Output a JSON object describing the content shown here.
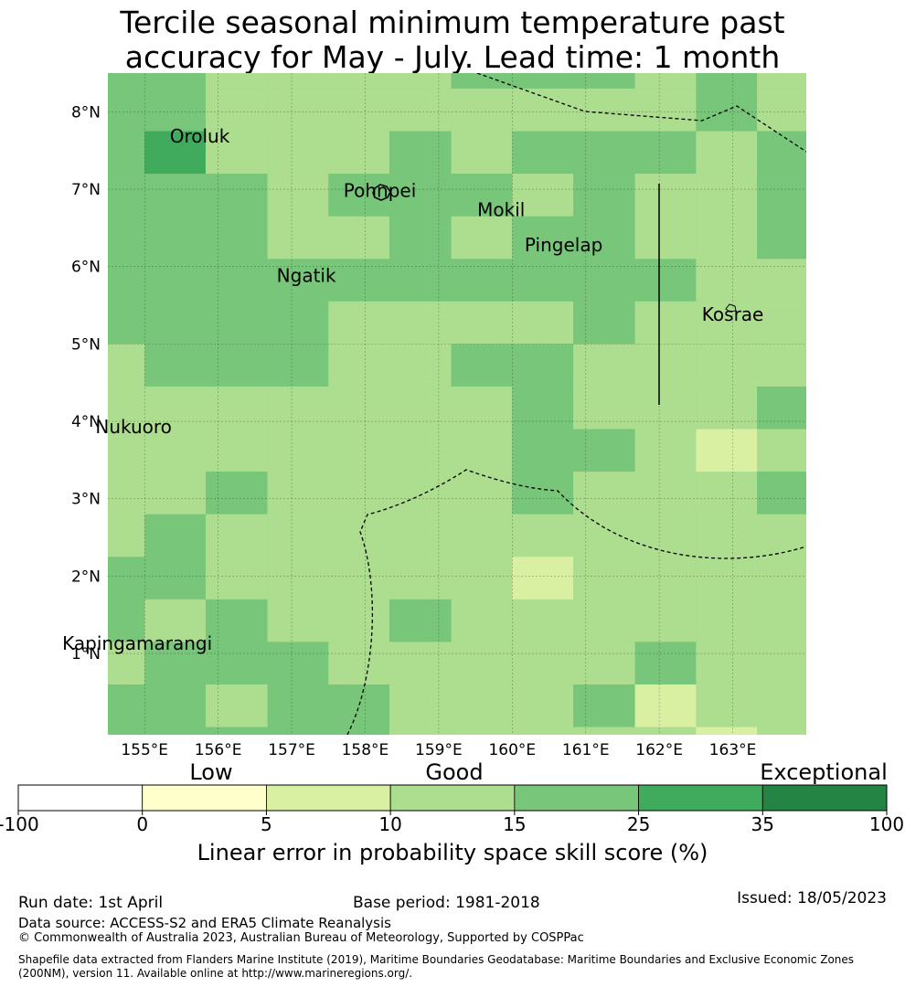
{
  "title_line1": "Tercile seasonal minimum temperature past",
  "title_line2": "accuracy for May - July. Lead time: 1 month",
  "map": {
    "lon_range": [
      154.5,
      164.0
    ],
    "lat_range": [
      -0.05,
      8.5
    ],
    "lon_ticks": [
      155,
      156,
      157,
      158,
      159,
      160,
      161,
      162,
      163
    ],
    "lon_tick_labels": [
      "155°E",
      "156°E",
      "157°E",
      "158°E",
      "159°E",
      "160°E",
      "161°E",
      "162°E",
      "163°E"
    ],
    "lat_ticks": [
      8,
      7,
      6,
      5,
      4,
      3,
      2,
      1
    ],
    "lat_tick_labels": [
      "8°N",
      "7°N",
      "6°N",
      "5°N",
      "4°N",
      "3°N",
      "2°N",
      "1°N"
    ],
    "places": [
      {
        "name": "Oroluk",
        "lon": 155.75,
        "lat": 7.6
      },
      {
        "name": "Pohnpei",
        "lon": 158.2,
        "lat": 6.9
      },
      {
        "name": "Mokil",
        "lon": 159.85,
        "lat": 6.65
      },
      {
        "name": "Pingelap",
        "lon": 160.7,
        "lat": 6.2
      },
      {
        "name": "Ngatik",
        "lon": 157.2,
        "lat": 5.8
      },
      {
        "name": "Kosrae",
        "lon": 163.0,
        "lat": 5.3
      },
      {
        "name": "Nukuoro",
        "lon": 154.85,
        "lat": 3.85
      },
      {
        "name": "Kapingamarangi",
        "lon": 154.9,
        "lat": 1.05
      }
    ]
  },
  "legend": {
    "categories": [
      "Low",
      "Good",
      "Exceptional"
    ],
    "boundaries": [
      "-100",
      "0",
      "5",
      "10",
      "15",
      "25",
      "35",
      "100"
    ],
    "colors": [
      "#ffffff",
      "#ffffcc",
      "#d9f0a3",
      "#addd8e",
      "#78c679",
      "#41ab5d",
      "#238443"
    ],
    "label": "Linear error in probability space skill score (%)"
  },
  "footer": {
    "run_date": "Run date: 1st April",
    "base_period": "Base period: 1981-2018",
    "issued": "Issued: 18/05/2023",
    "data_source": "Data source: ACCESS-S2 and ERA5 Climate Reanalysis",
    "copyright": "© Commonwealth of Australia 2023, Australian Bureau of Meteorology, Supported by COSPPac",
    "shapefile_line1": "Shapefile data extracted from Flanders Marine Institute (2019), Maritime Boundaries Geodatabase: Maritime Boundaries and Exclusive Economic Zones",
    "shapefile_line2": "(200NM), version 11. Available online at http://www.marineregions.org/."
  },
  "grid": {
    "lon_edges": [
      154.5,
      155.0,
      155.83,
      156.67,
      157.5,
      158.33,
      159.17,
      160.0,
      160.83,
      161.67,
      162.5,
      163.33,
      164.0
    ],
    "lat_edges_top_down": [
      8.5,
      8.3,
      7.75,
      7.2,
      6.65,
      6.1,
      5.55,
      5.0,
      4.45,
      3.9,
      3.35,
      2.8,
      2.25,
      1.7,
      1.15,
      0.6,
      0.05,
      -0.5
    ],
    "cell_classes_top_down": [
      [
        4,
        4,
        3,
        3,
        3,
        3,
        4,
        4,
        4,
        3,
        4,
        3
      ],
      [
        4,
        4,
        3,
        3,
        3,
        3,
        3,
        3,
        3,
        3,
        4,
        3
      ],
      [
        4,
        5,
        3,
        3,
        3,
        4,
        3,
        4,
        4,
        4,
        3,
        4
      ],
      [
        4,
        4,
        4,
        3,
        4,
        4,
        4,
        3,
        4,
        3,
        3,
        4
      ],
      [
        4,
        4,
        4,
        3,
        3,
        4,
        3,
        4,
        4,
        3,
        3,
        4
      ],
      [
        4,
        4,
        4,
        4,
        4,
        4,
        4,
        4,
        4,
        4,
        3,
        3
      ],
      [
        4,
        4,
        4,
        4,
        3,
        3,
        3,
        3,
        4,
        3,
        3,
        3
      ],
      [
        3,
        4,
        4,
        4,
        3,
        3,
        4,
        4,
        3,
        3,
        3,
        3
      ],
      [
        3,
        3,
        3,
        3,
        3,
        3,
        3,
        4,
        3,
        3,
        3,
        4
      ],
      [
        3,
        3,
        3,
        3,
        3,
        3,
        3,
        4,
        4,
        3,
        2,
        3
      ],
      [
        3,
        3,
        4,
        3,
        3,
        3,
        3,
        4,
        3,
        3,
        3,
        4
      ],
      [
        3,
        4,
        3,
        3,
        3,
        3,
        3,
        3,
        3,
        3,
        3,
        3
      ],
      [
        4,
        4,
        3,
        3,
        3,
        3,
        3,
        2,
        3,
        3,
        3,
        3
      ],
      [
        4,
        3,
        4,
        3,
        3,
        4,
        3,
        3,
        3,
        3,
        3,
        3
      ],
      [
        3,
        4,
        4,
        4,
        3,
        3,
        3,
        3,
        3,
        4,
        3,
        3
      ],
      [
        4,
        4,
        3,
        4,
        4,
        3,
        3,
        3,
        4,
        2,
        3,
        3
      ],
      [
        4,
        4,
        4,
        4,
        4,
        3,
        3,
        3,
        3,
        3,
        2,
        3
      ]
    ]
  }
}
